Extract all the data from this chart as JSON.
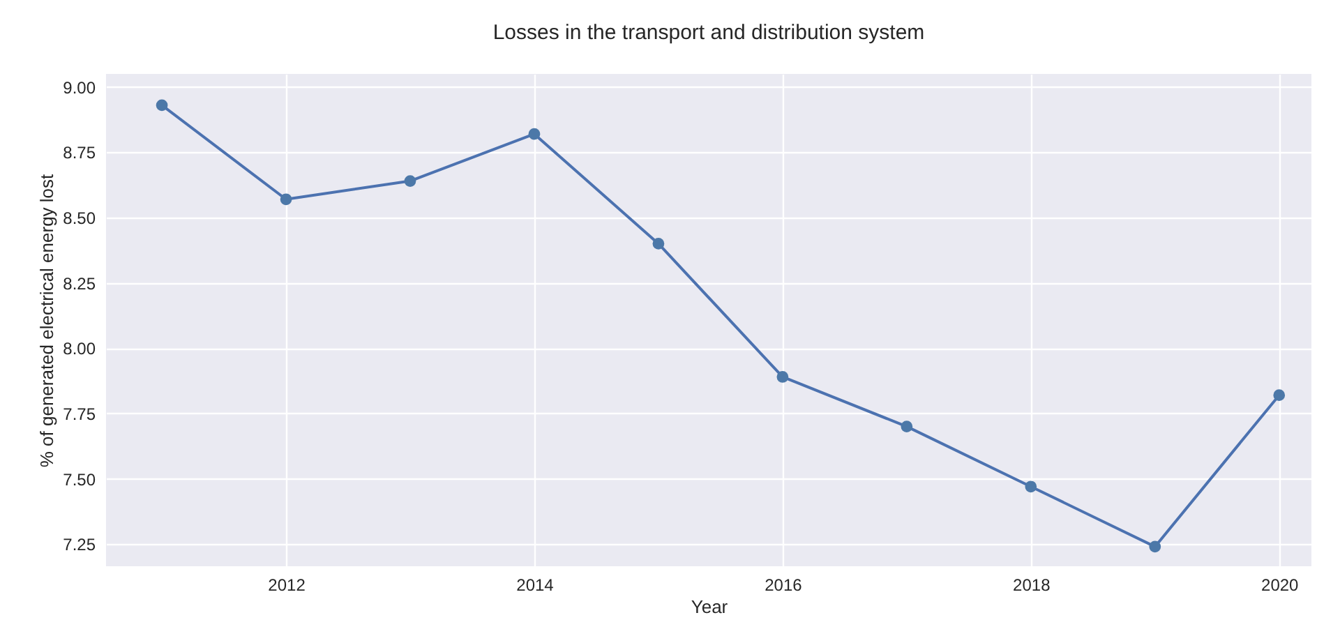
{
  "chart_data": {
    "type": "line",
    "title": "Losses in the transport and distribution system",
    "xlabel": "Year",
    "ylabel": "% of generated electrical energy lost",
    "x": [
      2011,
      2012,
      2013,
      2014,
      2015,
      2016,
      2017,
      2018,
      2019,
      2020
    ],
    "series": [
      {
        "color": "#4c72b0",
        "values": [
          8.93,
          8.57,
          8.64,
          8.82,
          8.4,
          7.89,
          7.7,
          7.47,
          7.24,
          7.82
        ]
      }
    ],
    "xlim": [
      2010.55,
      2020.26
    ],
    "xticks": [
      2012,
      2014,
      2016,
      2018,
      2020
    ],
    "ylim": [
      7.165,
      9.05
    ],
    "yticks": [
      7.25,
      {
        "value": 7.5,
        "label": "7.50"
      },
      7.75,
      {
        "value": 8,
        "label": "8.00"
      },
      8.25,
      {
        "value": 8.5,
        "label": "8.50"
      },
      8.75,
      {
        "value": 9,
        "label": "9.00"
      }
    ],
    "grid": true,
    "marker": "circle",
    "line_style": "solid"
  }
}
